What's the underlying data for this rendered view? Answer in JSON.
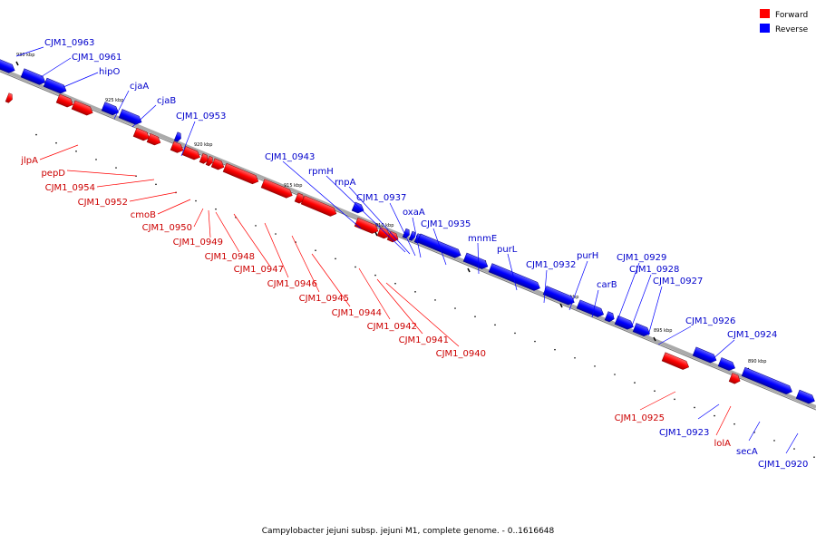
{
  "caption": "Campylobacter jejuni subsp. jejuni M1, complete genome. - 0..1616648",
  "legend": [
    {
      "label": "Forward",
      "color": "#ff0000"
    },
    {
      "label": "Reverse",
      "color": "#0000ff"
    }
  ],
  "colors": {
    "forward": "#ff0000",
    "reverse": "#0000ff",
    "backbone": "#999999",
    "forward_label": "#cc0000",
    "reverse_label": "#0000cc"
  },
  "ticks": [
    "930 kbp",
    "925 kbp",
    "920 kbp",
    "915 kbp",
    "910 kbp",
    "905 kbp",
    "900 kbp",
    "895 kbp",
    "890 kbp"
  ],
  "reverse_genes": [
    "CJM1_0963",
    "CJM1_0961",
    "hipO",
    "cjaA",
    "cjaB",
    "CJM1_0953",
    "CJM1_0943",
    "rpmH",
    "rnpA",
    "CJM1_0937",
    "oxaA",
    "CJM1_0935",
    "mnmE",
    "purL",
    "CJM1_0932",
    "purH",
    "carB",
    "CJM1_0929",
    "CJM1_0928",
    "CJM1_0927",
    "CJM1_0926",
    "CJM1_0924",
    "CJM1_0923",
    "secA",
    "CJM1_0920"
  ],
  "forward_genes": [
    "jlpA",
    "pepD",
    "CJM1_0954",
    "CJM1_0952",
    "cmoB",
    "CJM1_0950",
    "CJM1_0949",
    "CJM1_0948",
    "CJM1_0947",
    "CJM1_0946",
    "CJM1_0945",
    "CJM1_0944",
    "CJM1_0942",
    "CJM1_0941",
    "CJM1_0940",
    "CJM1_0925",
    "lolA"
  ]
}
